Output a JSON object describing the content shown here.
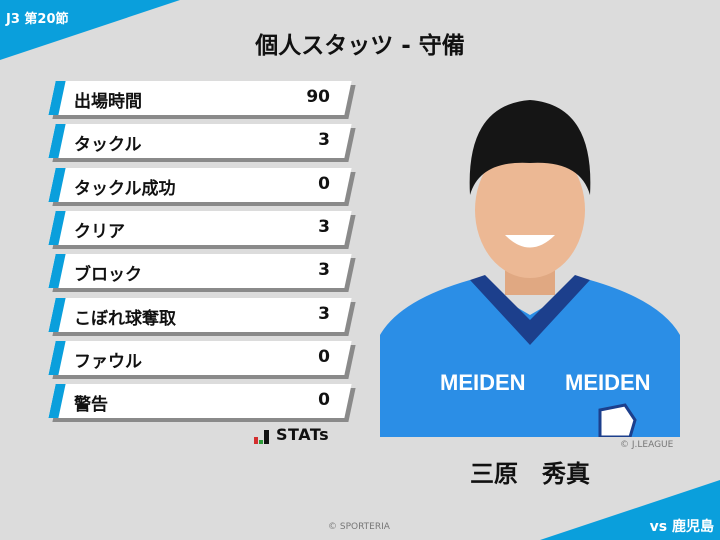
{
  "header": {
    "round": "J3 第20節",
    "title": "個人スタッツ - 守備"
  },
  "stats": [
    {
      "label": "出場時間",
      "value": "90"
    },
    {
      "label": "タックル",
      "value": "3"
    },
    {
      "label": "タックル成功",
      "value": "0"
    },
    {
      "label": "クリア",
      "value": "3"
    },
    {
      "label": "ブロック",
      "value": "3"
    },
    {
      "label": "こぼれ球奪取",
      "value": "3"
    },
    {
      "label": "ファウル",
      "value": "0"
    },
    {
      "label": "警告",
      "value": "0"
    }
  ],
  "stats_logo": "STATs",
  "player": {
    "name": "三原　秀真",
    "photo_credit": "© J.LEAGUE",
    "shirt_sponsor": "MEIDEN"
  },
  "footer": {
    "credit": "© SPORTERIA",
    "opponent": "vs 鹿児島"
  },
  "colors": {
    "accent": "#0a9fdc",
    "background": "#dcdcdc"
  }
}
